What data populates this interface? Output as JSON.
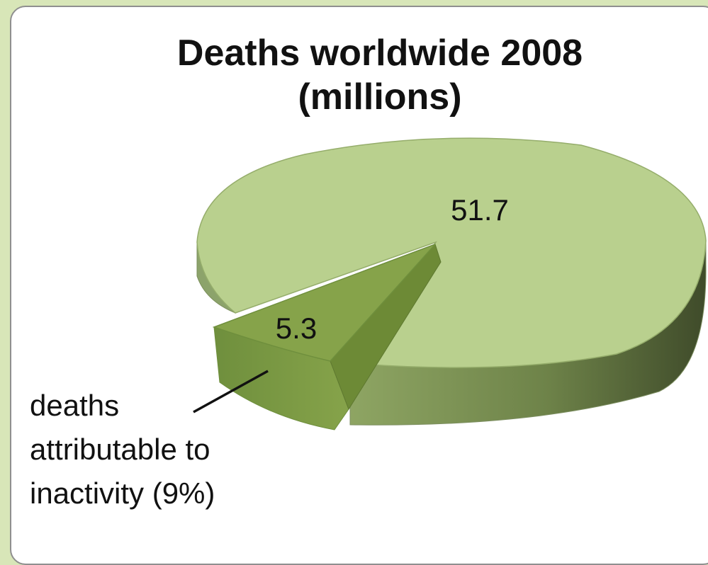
{
  "chart_data": {
    "type": "pie",
    "title": "Deaths worldwide 2008 (millions)",
    "title_lines": [
      "Deaths worldwide 2008",
      "(millions)"
    ],
    "slices": [
      {
        "value": 51.7,
        "label": "51.7",
        "color": "#b9d08e"
      },
      {
        "value": 5.3,
        "label": "5.3",
        "color": "#86a34a",
        "exploded": true
      }
    ],
    "annotation": "deaths\nattributable to\ninactivity (9%)",
    "colors": {
      "main_top": "#b9d08e",
      "main_side": "#6d7f4a",
      "small_top": "#86a34a",
      "small_side": "#63813a",
      "background": "#d8e6b8"
    }
  }
}
